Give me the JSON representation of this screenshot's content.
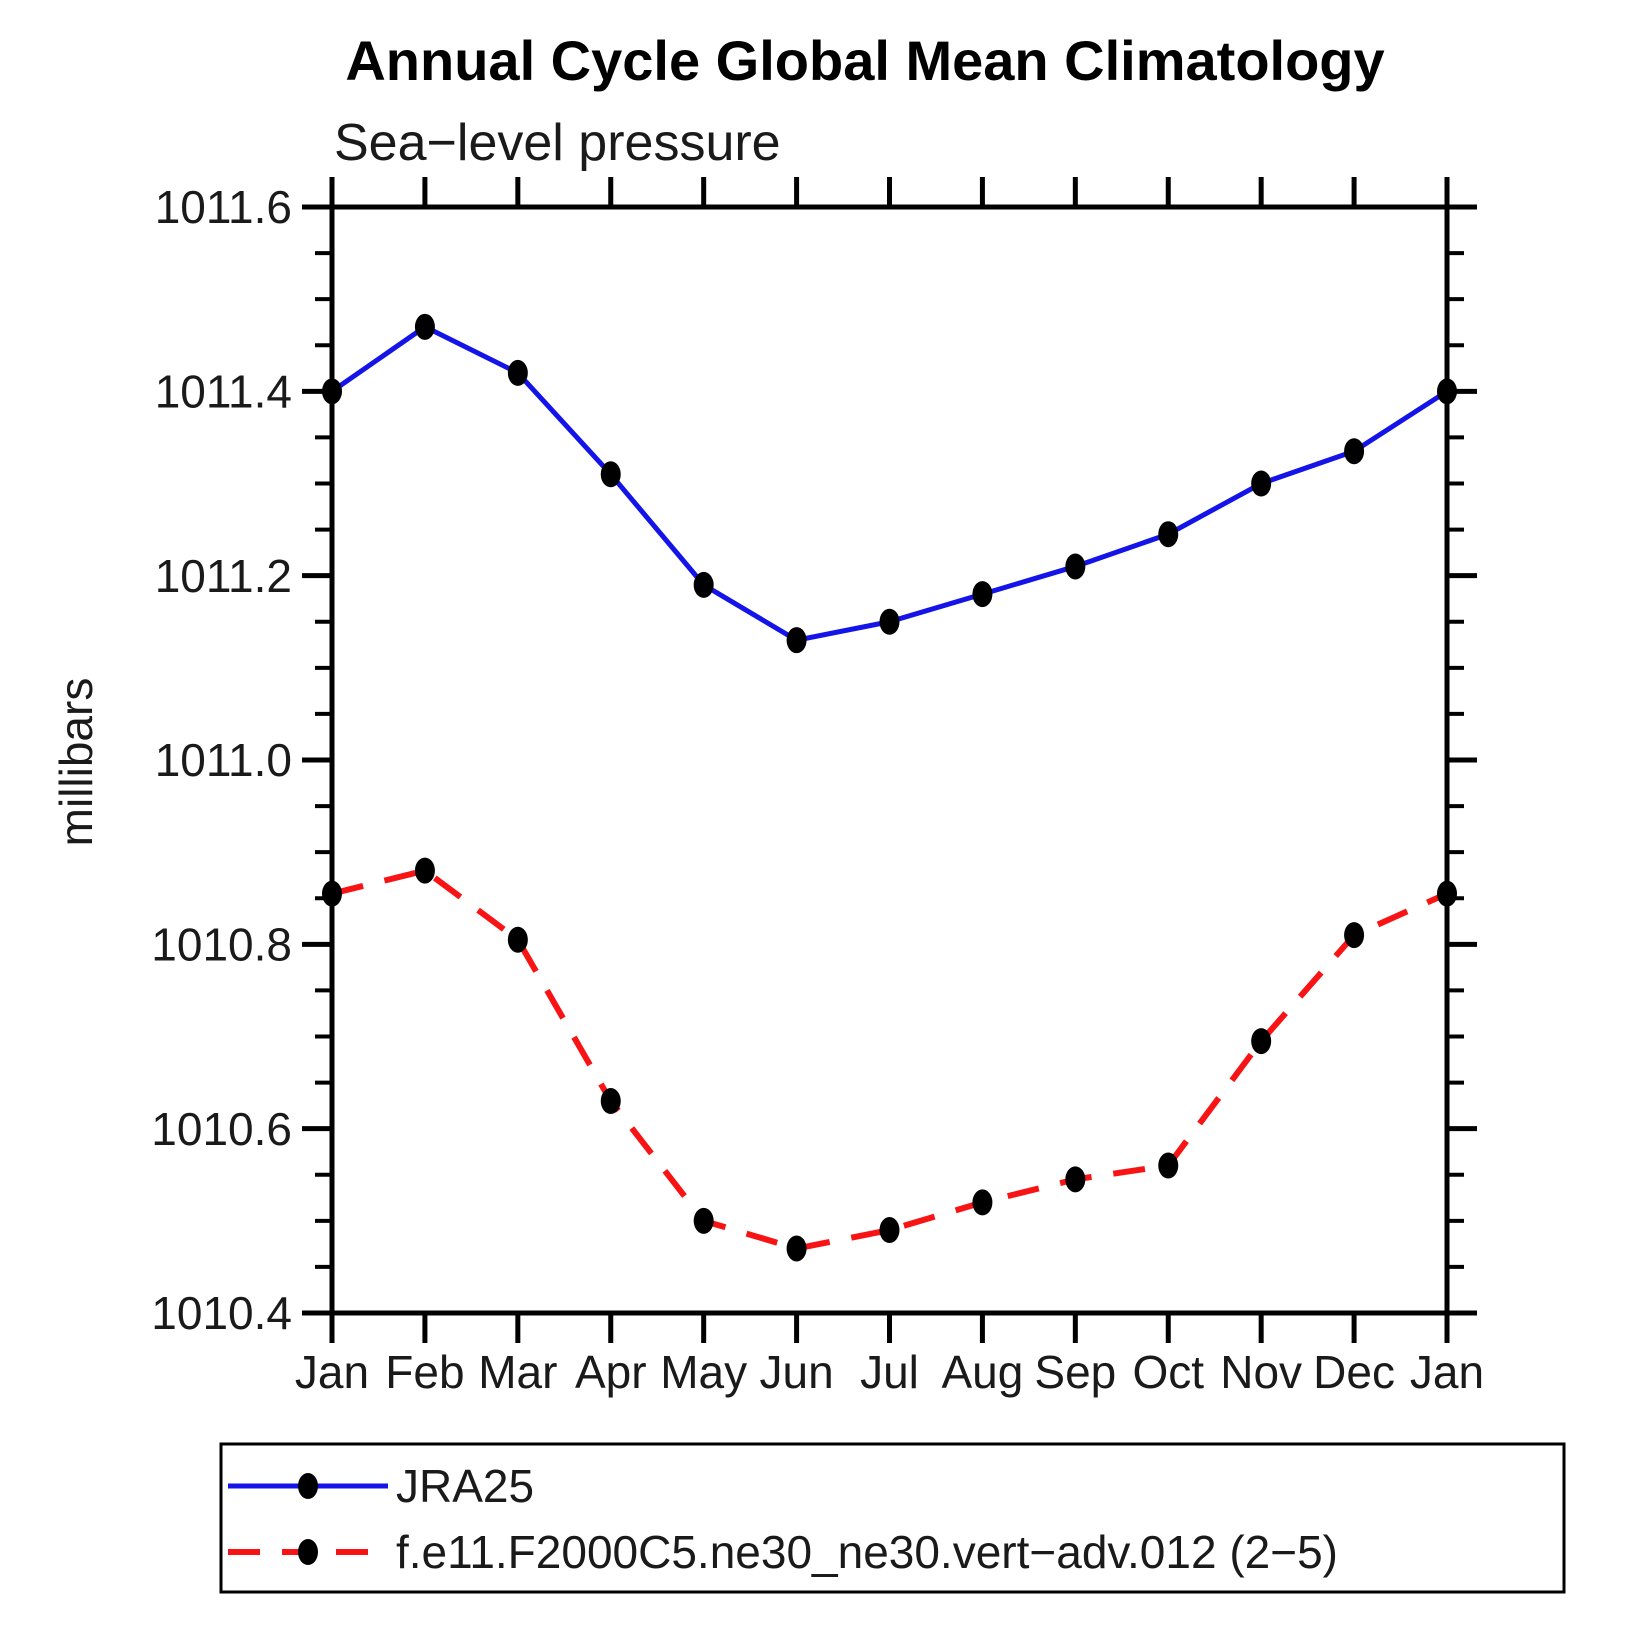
{
  "page": {
    "background": "#ffffff"
  },
  "header": {
    "title": "Annual Cycle Global Mean Climatology",
    "subtitle": "Sea−level pressure"
  },
  "chart_data": {
    "type": "line",
    "title": "Annual Cycle Global Mean Climatology",
    "subtitle": "Sea−level pressure",
    "xlabel": "",
    "ylabel": "millibars",
    "categories": [
      "Jan",
      "Feb",
      "Mar",
      "Apr",
      "May",
      "Jun",
      "Jul",
      "Aug",
      "Sep",
      "Oct",
      "Nov",
      "Dec",
      "Jan"
    ],
    "ylim": [
      1010.4,
      1011.6
    ],
    "y_major_ticks": [
      1010.4,
      1010.6,
      1010.8,
      1011.0,
      1011.2,
      1011.4,
      1011.6
    ],
    "y_tick_labels": [
      "1010.4",
      "1010.6",
      "1010.8",
      "1011.0",
      "1011.2",
      "1011.4",
      "1011.6"
    ],
    "y_minor_step": 0.05,
    "grid": false,
    "legend_position": "bottom-left-box",
    "axis_color": "#000000",
    "marker_color": "#000000",
    "series": [
      {
        "name": "JRA25",
        "color": "#1414e8",
        "line_style": "solid",
        "marker": "filled-dot",
        "values": [
          1011.4,
          1011.47,
          1011.42,
          1011.31,
          1011.19,
          1011.13,
          1011.15,
          1011.18,
          1011.21,
          1011.245,
          1011.3,
          1011.335,
          1011.4
        ]
      },
      {
        "name": "f.e11.F2000C5.ne30_ne30.vert−adv.012 (2−5)",
        "color": "#f81414",
        "line_style": "dashed",
        "marker": "filled-dot",
        "values": [
          1010.855,
          1010.88,
          1010.805,
          1010.63,
          1010.5,
          1010.47,
          1010.49,
          1010.52,
          1010.545,
          1010.56,
          1010.695,
          1010.81,
          1010.855
        ]
      }
    ]
  }
}
